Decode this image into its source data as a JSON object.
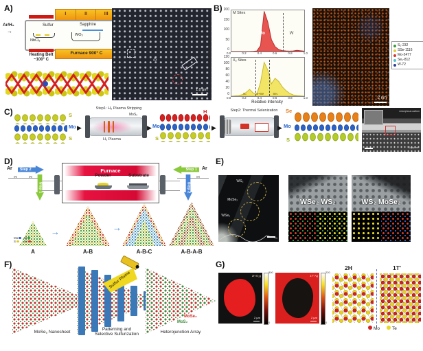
{
  "panels": {
    "A": {
      "label": "A)",
      "zones": [
        "I",
        "II",
        "III"
      ],
      "gas": "Ar/H₂",
      "sulfur": "Sulfur",
      "precursor1": "NbCl₅",
      "precursor2": "WO₃",
      "substrate": "Sapphire",
      "heating_belt_line1": "Heating Belt",
      "heating_belt_line2": "~100° C",
      "furnace": "Furnace 900° C",
      "scalebar": "1.0 μm"
    },
    "B": {
      "label": "B)",
      "ylabel": "Atoms Per Bin",
      "xlabel": "Relative Intensity",
      "xticks": [
        "0.0",
        "0.2",
        "0.4",
        "0.6",
        "0.8",
        "1.0"
      ],
      "m_hist": {
        "title": "M Sites",
        "color": "#e85450",
        "stroke": "#b83030",
        "ymax": 210,
        "values": [
          0,
          0,
          0,
          0,
          0,
          0,
          1,
          3,
          30,
          205,
          150,
          60,
          25,
          10,
          5,
          3,
          2,
          3,
          6,
          4,
          2
        ],
        "peak_label": "Mo",
        "secondary_label": "W",
        "yticks": [
          "200",
          "150",
          "100",
          "50",
          "0"
        ]
      },
      "x_hist": {
        "title": "X₂ Sites",
        "color": "#f2e565",
        "stroke": "#c8b830",
        "ymax": 125,
        "values": [
          0,
          1,
          2,
          5,
          12,
          22,
          10,
          6,
          45,
          110,
          85,
          40,
          58,
          48,
          30,
          18,
          9,
          4,
          2,
          1,
          0
        ],
        "labels": [
          "S₂",
          "S+Se",
          "Se₂"
        ],
        "yticks": [
          "120",
          "100",
          "80",
          "60",
          "40",
          "20",
          "0"
        ]
      },
      "legend": [
        {
          "color": "#3c9a3c",
          "label": "S₂-232"
        },
        {
          "color": "#e0cc3a",
          "label": "SSe-1116"
        },
        {
          "color": "#d4382a",
          "label": "Mo-2477"
        },
        {
          "color": "#52c0d0",
          "label": "Se₂-812"
        },
        {
          "color": "#2c3e96",
          "label": "W-72"
        }
      ],
      "scalebar": "2 nm"
    },
    "C": {
      "label": "C)",
      "model1": {
        "top": "S",
        "mid": "Mo",
        "bot": "S"
      },
      "step1_title": "Step1: H₂ Plasma Stripping",
      "step1_sub": "MoS₂",
      "step1_below": "H₂ Plasma",
      "model2": {
        "top": "H",
        "mid": "Mo",
        "bot": "S"
      },
      "step2_title": "Step2: Thermal Selenization",
      "model3": {
        "top": "Se",
        "mid": "Mo",
        "bot": "S"
      },
      "tem_label1": "Amorphous carbon",
      "tem_label2": "Sapphire"
    },
    "D": {
      "label": "D)",
      "furnace": "Furnace",
      "powder": "Powder",
      "substrate": "Substrate",
      "ar": "Ar",
      "step1": "Step 1",
      "step2": "Step 2",
      "legend": [
        {
          "label": "Mo",
          "color": "#3a5fc8"
        },
        {
          "label": "W",
          "color": "#3c9a3c"
        },
        {
          "label": "S",
          "color": "#e0c820"
        },
        {
          "label": "Se",
          "color": "#d4382a"
        }
      ],
      "triangles": [
        "A",
        "A-B",
        "A-B-C",
        "A-B-A-B"
      ]
    },
    "E": {
      "label": "E)",
      "sem_labels": [
        "WS₂",
        "MoSe₂",
        "WSe₂"
      ],
      "img1_label": "WSe₂ WS₂",
      "img2_label": "WS₂  MoSe₂"
    },
    "F": {
      "label": "F)",
      "caption1": "MoSe₂ Nanosheet",
      "plume": "Sulfur Plume",
      "caption2_line1": "Patterning and",
      "caption2_line2": "Selective Sulfurization",
      "legend_red": "MoSe₂",
      "legend_green": "MoS₂",
      "caption3": "Heterojunction Array"
    },
    "G": {
      "label": "G)",
      "map1": {
        "label": "2H E₂g",
        "cb_max": "800",
        "cb_min": "0",
        "scalebar": "2 μm"
      },
      "map2": {
        "label": "1T' Ag",
        "cb_max": "220",
        "cb_min": "0",
        "scalebar": "2 μm"
      },
      "phase_left": "2H",
      "phase_right": "1T'",
      "legend": [
        {
          "label": "Mo",
          "color": "#d42020"
        },
        {
          "label": "Te",
          "color": "#e8d820"
        }
      ]
    }
  },
  "chart_data": [
    {
      "type": "area",
      "title": "M Sites",
      "xlabel": "Relative Intensity",
      "ylabel": "Atoms Per Bin",
      "xlim": [
        0.0,
        1.0
      ],
      "ylim": [
        0,
        210
      ],
      "bin_start": 0.0,
      "bin_step": 0.05,
      "values": [
        0,
        0,
        0,
        0,
        0,
        0,
        1,
        3,
        30,
        205,
        150,
        60,
        25,
        10,
        5,
        3,
        2,
        3,
        6,
        4,
        2
      ],
      "annotations": [
        "Mo peak near 0.45",
        "W region right of dashed line near 0.72"
      ],
      "series_color": "#e85450",
      "grid": false
    },
    {
      "type": "area",
      "title": "X₂ Sites",
      "xlabel": "Relative Intensity",
      "ylabel": "Atoms Per Bin",
      "xlim": [
        0.0,
        1.0
      ],
      "ylim": [
        0,
        125
      ],
      "bin_start": 0.0,
      "bin_step": 0.05,
      "values": [
        0,
        1,
        2,
        5,
        12,
        22,
        10,
        6,
        45,
        110,
        85,
        40,
        58,
        48,
        30,
        18,
        9,
        4,
        2,
        1,
        0
      ],
      "annotations": [
        "S₂ peak near 0.25",
        "S+Se peak near 0.45",
        "Se₂ peak near 0.6",
        "dashed lines near 0.33 and 0.53"
      ],
      "series_color": "#f2e565",
      "grid": false
    }
  ]
}
